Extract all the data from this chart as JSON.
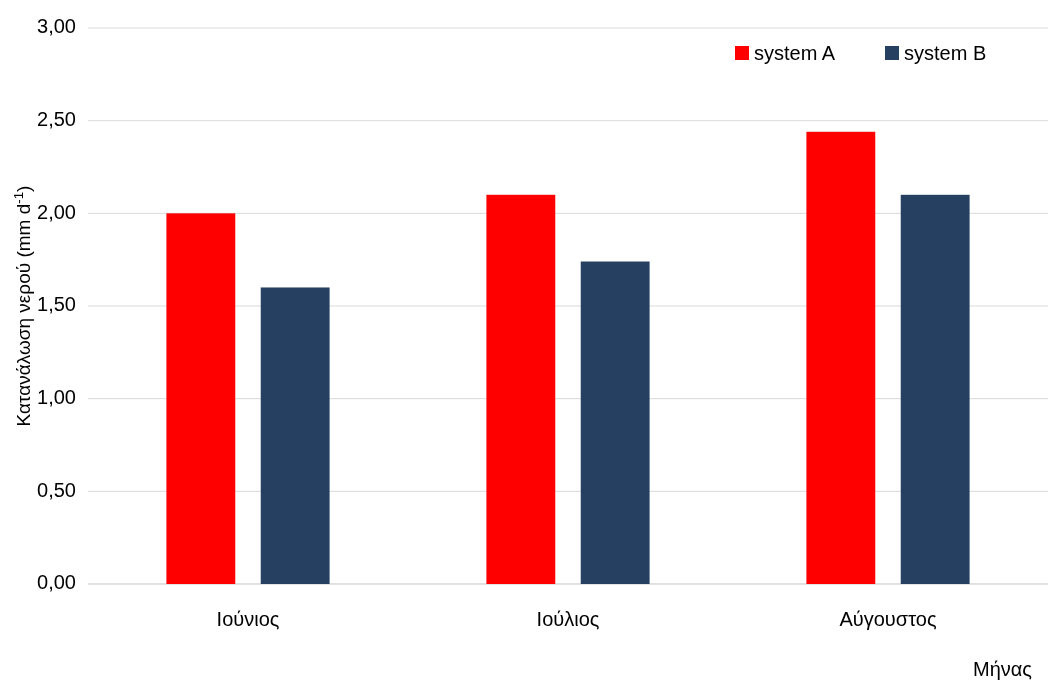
{
  "chart_data": {
    "type": "bar",
    "xlabel": "Μήνας",
    "ylabel": "Κατανάλωση νερού (mm d$^{-1}$)",
    "categories": [
      "Ιούνιος",
      "Ιούλιος",
      "Αύγουστος"
    ],
    "series": [
      {
        "name": "system A",
        "color": "#ff0000",
        "values": [
          2.0,
          2.1,
          2.44
        ]
      },
      {
        "name": "system B",
        "color": "#264061",
        "values": [
          1.6,
          1.74,
          2.1
        ]
      }
    ],
    "ylim": [
      0,
      3
    ],
    "yticks": [
      {
        "value": 0,
        "label": "0,00"
      },
      {
        "value": 0.5,
        "label": "0,50"
      },
      {
        "value": 1,
        "label": "1,00"
      },
      {
        "value": 1.5,
        "label": "1,50"
      },
      {
        "value": 2,
        "label": "2,00"
      },
      {
        "value": 2.5,
        "label": "2,50"
      },
      {
        "value": 3,
        "label": "3,00"
      }
    ],
    "grid": "y",
    "legend": "top right"
  }
}
